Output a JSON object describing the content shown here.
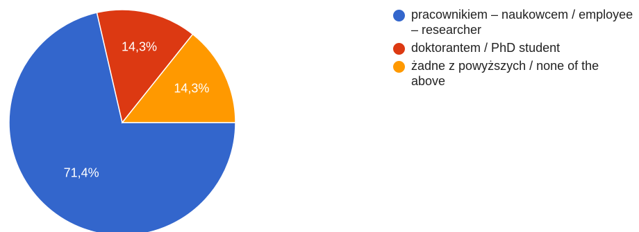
{
  "chart_data": {
    "type": "pie",
    "title": "",
    "slices": [
      {
        "name": "pracownikiem – naukowcem / employee – researcher",
        "value": 71.4,
        "label": "71,4%",
        "color": "#3366cc"
      },
      {
        "name": "doktorantem / PhD student",
        "value": 14.3,
        "label": "14,3%",
        "color": "#dc3912"
      },
      {
        "name": "żadne z powyższych / none of the above",
        "value": 14.3,
        "label": "14,3%",
        "color": "#ff9900"
      }
    ],
    "legend_position": "right"
  }
}
